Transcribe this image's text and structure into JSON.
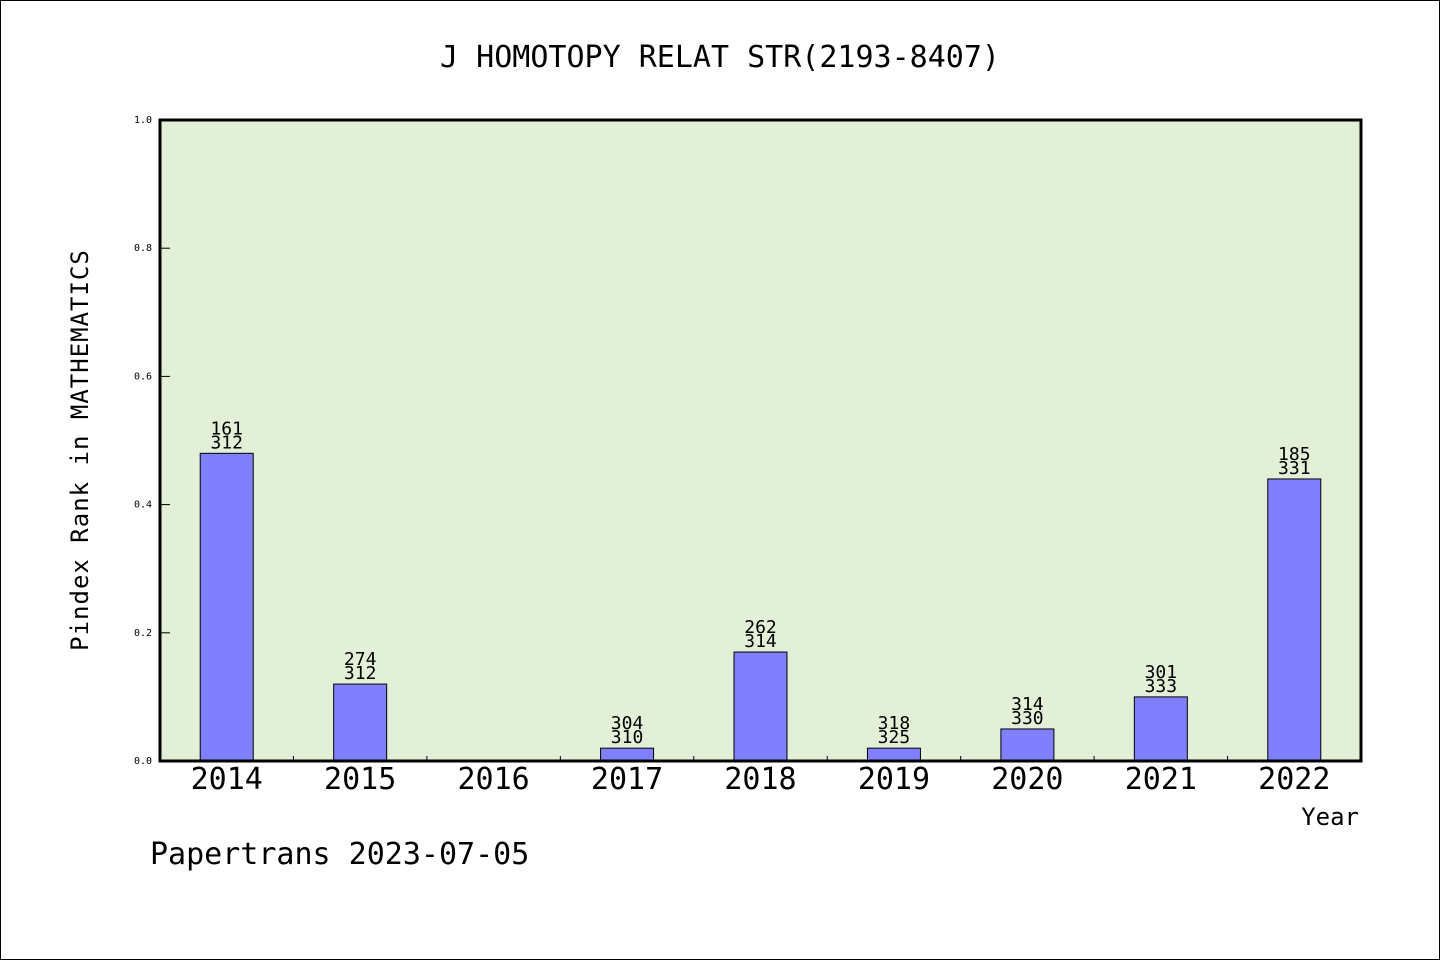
{
  "chart_data": {
    "type": "bar",
    "title": "J HOMOTOPY RELAT STR(2193-8407)",
    "xlabel": "Year",
    "ylabel": "Pindex Rank in MATHEMATICS",
    "ylim": [
      0,
      1.0
    ],
    "yticks": [
      "0.0",
      "0.2",
      "0.4",
      "0.6",
      "0.8",
      "1.0"
    ],
    "grid": false,
    "categories": [
      "2014",
      "2015",
      "2016",
      "2017",
      "2018",
      "2019",
      "2020",
      "2021",
      "2022"
    ],
    "values": [
      0.48,
      0.12,
      0,
      0.02,
      0.17,
      0.02,
      0.05,
      0.1,
      0.44
    ],
    "labels_top": [
      "161",
      "274",
      "",
      "304",
      "262",
      "318",
      "314",
      "301",
      "185"
    ],
    "labels_bottom": [
      "312",
      "312",
      "",
      "310",
      "314",
      "325",
      "330",
      "333",
      "331"
    ],
    "colors": {
      "plot_background": "#e2f0d7",
      "bar": "#8080ff",
      "axis": "#000000"
    }
  },
  "footer": {
    "credit": "Papertrans 2023-07-05"
  }
}
